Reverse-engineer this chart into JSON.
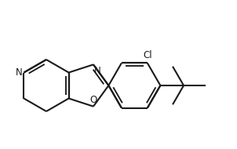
{
  "bg_color": "#ffffff",
  "line_color": "#1a1a1a",
  "line_width": 1.5,
  "font_size": 8.5,
  "fig_w": 2.98,
  "fig_h": 1.86,
  "dpi": 100
}
